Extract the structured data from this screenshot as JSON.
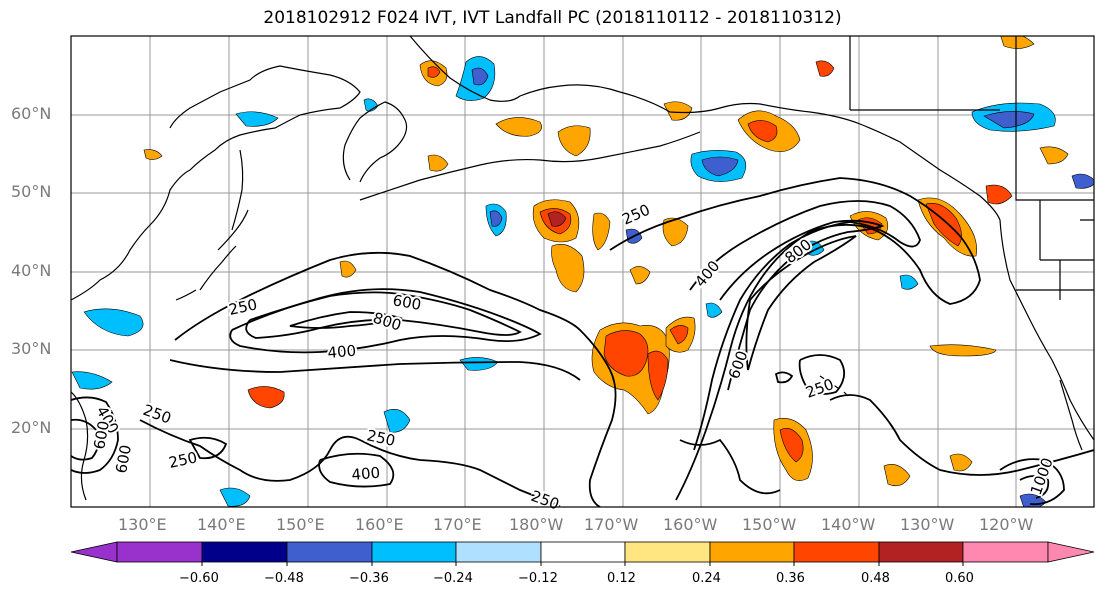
{
  "title": "2018102912 F024 IVT, IVT Landfall PC (2018110112 - 2018110312)",
  "map": {
    "lon_labels": [
      "130°E",
      "140°E",
      "150°E",
      "160°E",
      "170°E",
      "180°W",
      "170°W",
      "160°W",
      "150°W",
      "140°W",
      "130°W",
      "120°W"
    ],
    "lat_labels": [
      "60°N",
      "50°N",
      "40°N",
      "30°N",
      "20°N"
    ],
    "contour_labels": [
      "250",
      "600",
      "800",
      "400",
      "250",
      "400",
      "600",
      "800",
      "600",
      "250",
      "250",
      "250",
      "400",
      "250",
      "400",
      "600",
      "600",
      "1000"
    ],
    "colors": {
      "land_outline": "#000000",
      "gridline": "#999999",
      "contour": "#000000"
    }
  },
  "colorbar": {
    "ticks": [
      "−0.60",
      "−0.48",
      "−0.36",
      "−0.24",
      "−0.12",
      "0.12",
      "0.24",
      "0.36",
      "0.48",
      "0.60"
    ],
    "colors": [
      "#9932cc",
      "#00008b",
      "#3f5fcf",
      "#00bfff",
      "#b0e0ff",
      "#ffffff",
      "#ffe680",
      "#ffa500",
      "#ff4500",
      "#b22222",
      "#ff88b0"
    ]
  }
}
